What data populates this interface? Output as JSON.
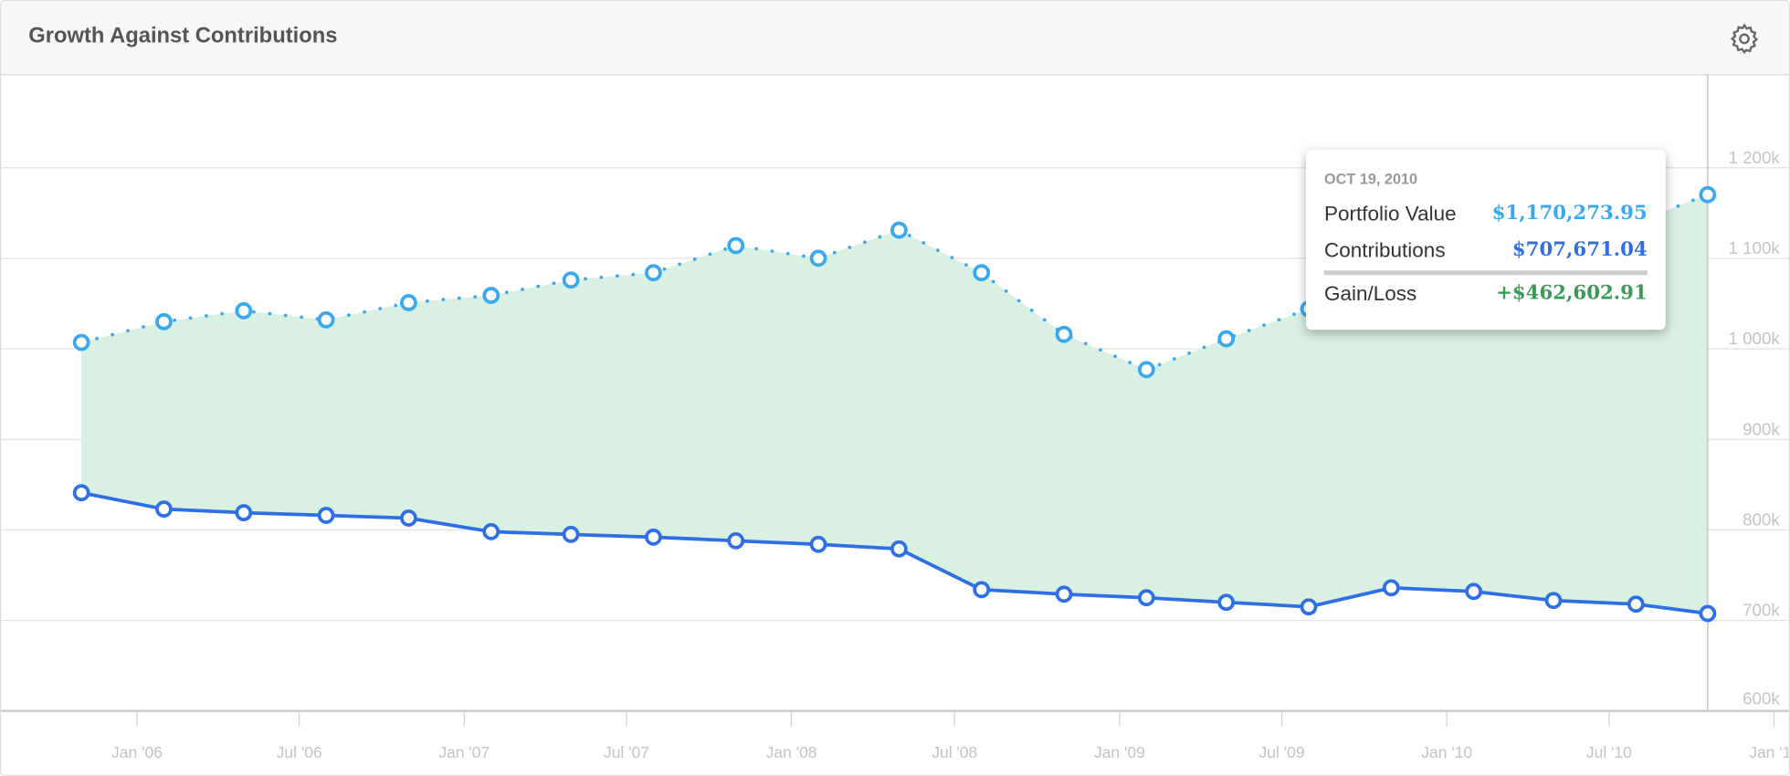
{
  "header": {
    "title": "Growth Against Contributions",
    "settings_icon": "gear-icon"
  },
  "tooltip": {
    "date": "OCT 19, 2010",
    "rows": [
      {
        "label": "Portfolio Value",
        "value": "$1,170,273.95"
      },
      {
        "label": "Contributions",
        "value": "$707,671.04"
      },
      {
        "label": "Gain/Loss",
        "value": "+$462,602.91"
      }
    ]
  },
  "colors": {
    "portfolio": "#3aa8ee",
    "contributions": "#2f6fe6",
    "gain": "#3a9a5a",
    "area": "#d9f0e3"
  },
  "chart_data": {
    "type": "line",
    "title": "Growth Against Contributions",
    "ylim": [
      600,
      1250
    ],
    "yticks": [
      600,
      700,
      800,
      900,
      1000,
      1100,
      1200
    ],
    "ytick_labels": [
      "600k",
      "700k",
      "800k",
      "900k",
      "1 000k",
      "1 100k",
      "1 200k"
    ],
    "xticks": [
      "2006-01-01",
      "2006-07-01",
      "2007-01-01",
      "2007-07-01",
      "2008-01-01",
      "2008-07-01",
      "2009-01-01",
      "2009-07-01",
      "2010-01-01",
      "2010-07-01",
      "2011-01-01"
    ],
    "xtick_labels": [
      "Jan '06",
      "Jul '06",
      "Jan '07",
      "Jul '07",
      "Jan '08",
      "Jul '08",
      "Jan '09",
      "Jul '09",
      "Jan '10",
      "Jul '10",
      "Jan '11"
    ],
    "x": [
      "2005-10-31",
      "2006-01-31",
      "2006-04-30",
      "2006-07-31",
      "2006-10-31",
      "2007-01-31",
      "2007-04-30",
      "2007-07-31",
      "2007-10-31",
      "2008-01-31",
      "2008-04-30",
      "2008-07-31",
      "2008-10-31",
      "2009-01-31",
      "2009-04-30",
      "2009-07-31",
      "2009-10-31",
      "2010-01-31",
      "2010-04-30",
      "2010-07-31",
      "2010-10-19"
    ],
    "series": [
      {
        "name": "Portfolio Value",
        "values": [
          1007,
          1030,
          1042,
          1032,
          1051,
          1059,
          1076,
          1084,
          1114,
          1100,
          1131,
          1084,
          1016,
          977,
          1011,
          1044,
          1075,
          1100,
          1120,
          1140,
          1170.27
        ]
      },
      {
        "name": "Contributions",
        "values": [
          841,
          823,
          819,
          816,
          813,
          798,
          795,
          792,
          788,
          784,
          779,
          734,
          729,
          725,
          720,
          715,
          736,
          732,
          722,
          718,
          707.67
        ]
      }
    ]
  }
}
